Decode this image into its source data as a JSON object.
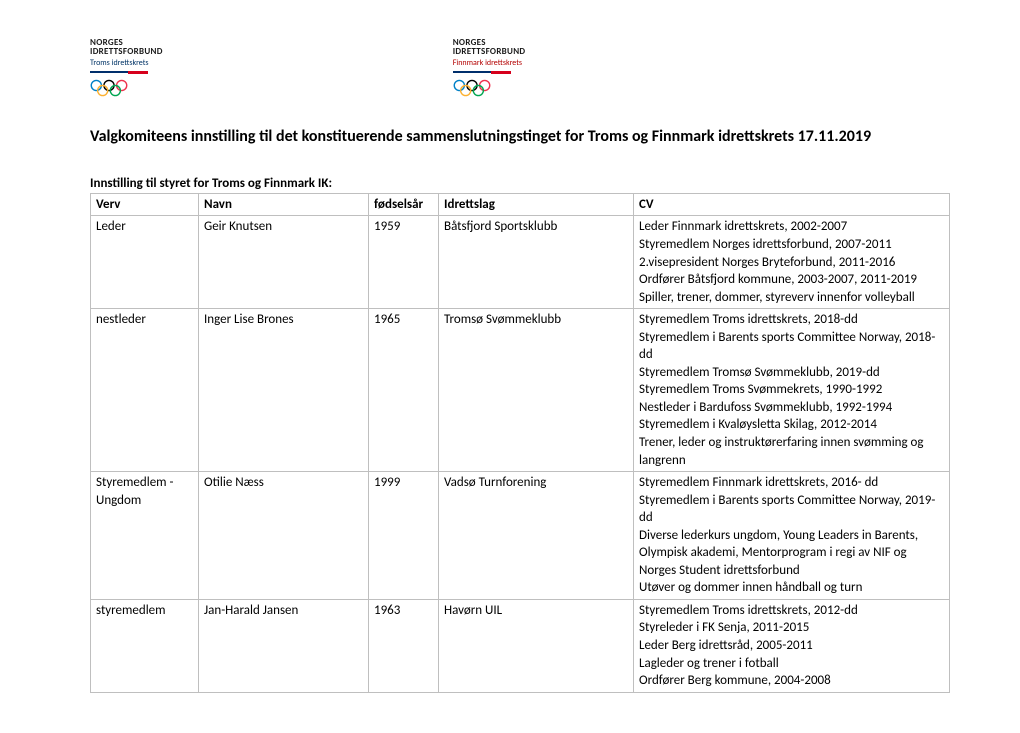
{
  "logos": {
    "org_line1": "NORGES",
    "org_line2": "IDRETTSFORBUND",
    "left_sub": "Troms idrettskrets",
    "right_sub": "Finnmark idrettskrets",
    "ring_colors": [
      "#0081c8",
      "#000000",
      "#ee334e",
      "#fcb131",
      "#00a651"
    ]
  },
  "title": "Valgkomiteens innstilling til det konstituerende sammenslutningstinget for Troms og Finnmark idrettskrets 17.11.2019",
  "section": "Innstilling til styret for Troms og Finnmark IK:",
  "columns": {
    "verv": "Verv",
    "navn": "Navn",
    "year": "fødselsår",
    "lag": "Idrettslag",
    "cv": "CV"
  },
  "rows": [
    {
      "verv": "Leder",
      "navn": "Geir Knutsen",
      "year": "1959",
      "lag": "Båtsfjord Sportsklubb",
      "cv": [
        "Leder Finnmark idrettskrets, 2002-2007",
        "Styremedlem Norges idrettsforbund, 2007-2011",
        "2.visepresident Norges Bryteforbund, 2011-2016",
        "Ordfører Båtsfjord kommune, 2003-2007, 2011-2019",
        "Spiller, trener, dommer, styreverv innenfor volleyball"
      ]
    },
    {
      "verv": "nestleder",
      "navn": "Inger Lise Brones",
      "year": "1965",
      "lag": "Tromsø Svømmeklubb",
      "cv": [
        "Styremedlem Troms idrettskrets, 2018-dd",
        "Styremedlem i Barents sports Committee Norway, 2018-dd",
        "Styremedlem Tromsø Svømmeklubb, 2019-dd",
        "Styremedlem Troms Svømmekrets, 1990-1992",
        "Nestleder i Bardufoss Svømmeklubb, 1992-1994",
        "Styremedlem i Kvaløysletta Skilag, 2012-2014",
        "Trener, leder og instruktørerfaring innen svømming og langrenn"
      ]
    },
    {
      "verv": "Styremedlem - Ungdom",
      "navn": "Otilie Næss",
      "year": "1999",
      "lag": "Vadsø Turnforening",
      "cv": [
        "Styremedlem Finnmark idrettskrets, 2016- dd",
        "Styremedlem i Barents sports Committee Norway, 2019-dd",
        "Diverse lederkurs ungdom, Young Leaders in Barents, Olympisk akademi, Mentorprogram i regi av NIF og Norges Student idrettsforbund",
        "Utøver og dommer innen håndball og turn"
      ]
    },
    {
      "verv": "styremedlem",
      "navn": "Jan-Harald Jansen",
      "year": "1963",
      "lag": "Havørn UIL",
      "cv": [
        "Styremedlem Troms idrettskrets, 2012-dd",
        "Styreleder i FK Senja, 2011-2015",
        "Leder Berg idrettsråd, 2005-2011",
        "Lagleder og trener i fotball",
        "Ordfører Berg kommune, 2004-2008"
      ]
    }
  ]
}
